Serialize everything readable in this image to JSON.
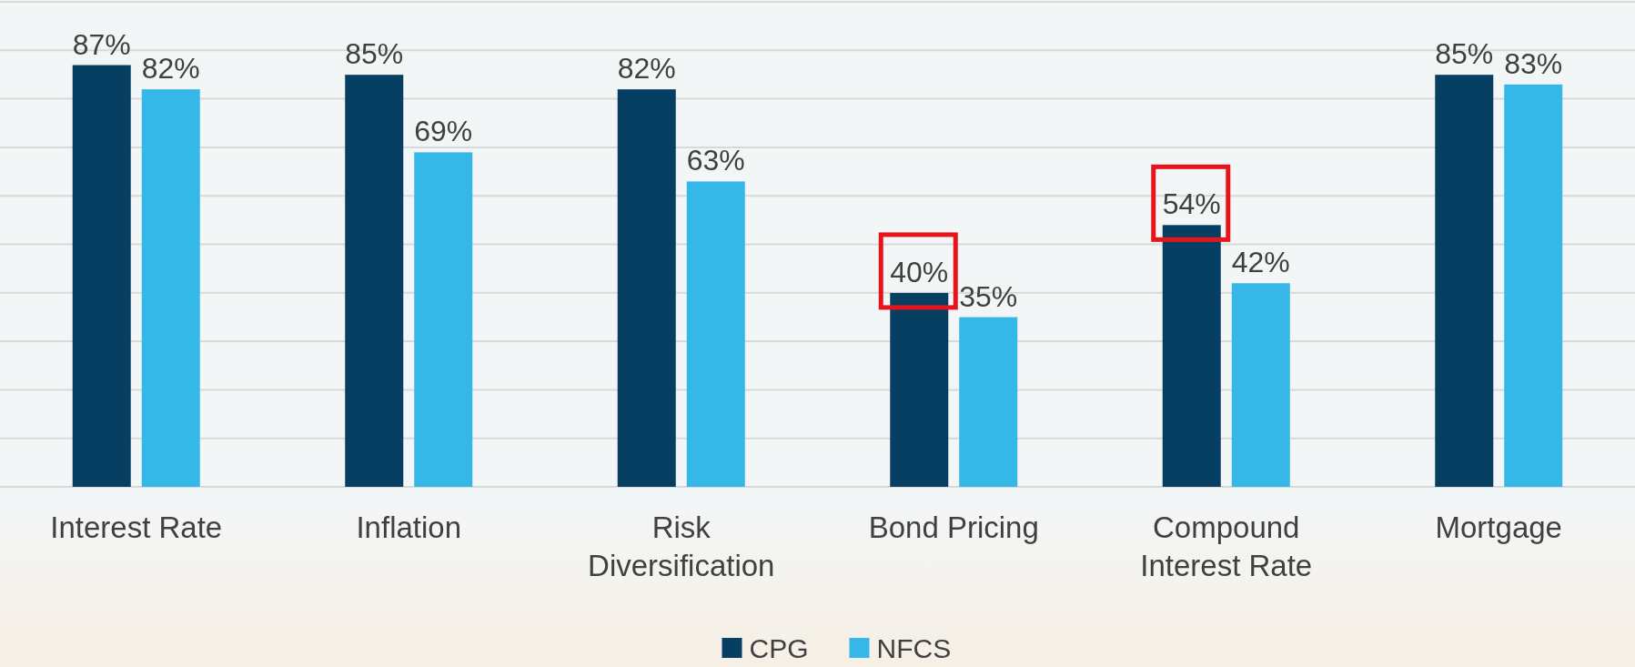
{
  "chart_data": {
    "type": "bar",
    "categories": [
      "Interest Rate",
      "Inflation",
      "Risk Diversification",
      "Bond Pricing",
      "Compound Interest Rate",
      "Mortgage"
    ],
    "series": [
      {
        "name": "CPG",
        "color": "#073f63",
        "values": [
          87,
          85,
          82,
          40,
          54,
          85
        ],
        "value_labels": [
          "87%",
          "85%",
          "82%",
          "40%",
          "54%",
          "85%"
        ]
      },
      {
        "name": "NFCS",
        "color": "#35b8e8",
        "values": [
          82,
          69,
          63,
          35,
          42,
          83
        ],
        "value_labels": [
          "82%",
          "69%",
          "63%",
          "35%",
          "42%",
          "83%"
        ]
      }
    ],
    "grid": "y",
    "legend": "bottom"
  }
}
